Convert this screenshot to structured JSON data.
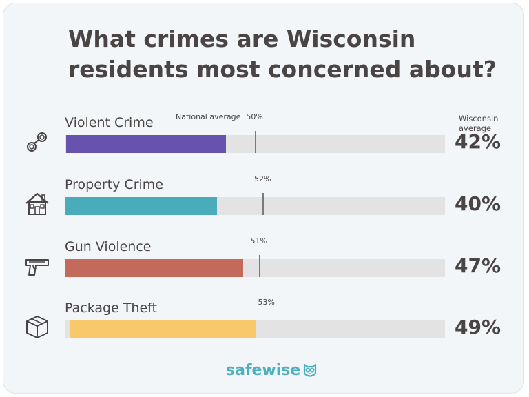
{
  "chart_data": {
    "type": "bar",
    "title": "What crimes are Wisconsin residents most concerned about?",
    "categories": [
      "Violent Crime",
      "Property Crime",
      "Gun Violence",
      "Package Theft"
    ],
    "series": [
      {
        "name": "Wisconsin average",
        "values": [
          42,
          40,
          47,
          49
        ]
      },
      {
        "name": "National average",
        "values": [
          50,
          52,
          51,
          53
        ]
      }
    ],
    "value_labels": [
      "42%",
      "40%",
      "47%",
      "49%"
    ],
    "national_labels": [
      "50%",
      "52%",
      "51%",
      "53%"
    ],
    "national_caption": "National average",
    "wisconsin_caption": "Wisconsin average",
    "ylim": [
      0,
      100
    ],
    "colors": [
      "#6753ad",
      "#4aabbb",
      "#c46a5b",
      "#f8c96a"
    ],
    "track_color": "#e3e3e3",
    "icons": [
      "handcuffs-icon",
      "house-icon",
      "gun-icon",
      "package-icon"
    ]
  },
  "branding": {
    "logo_text": "safewise"
  }
}
